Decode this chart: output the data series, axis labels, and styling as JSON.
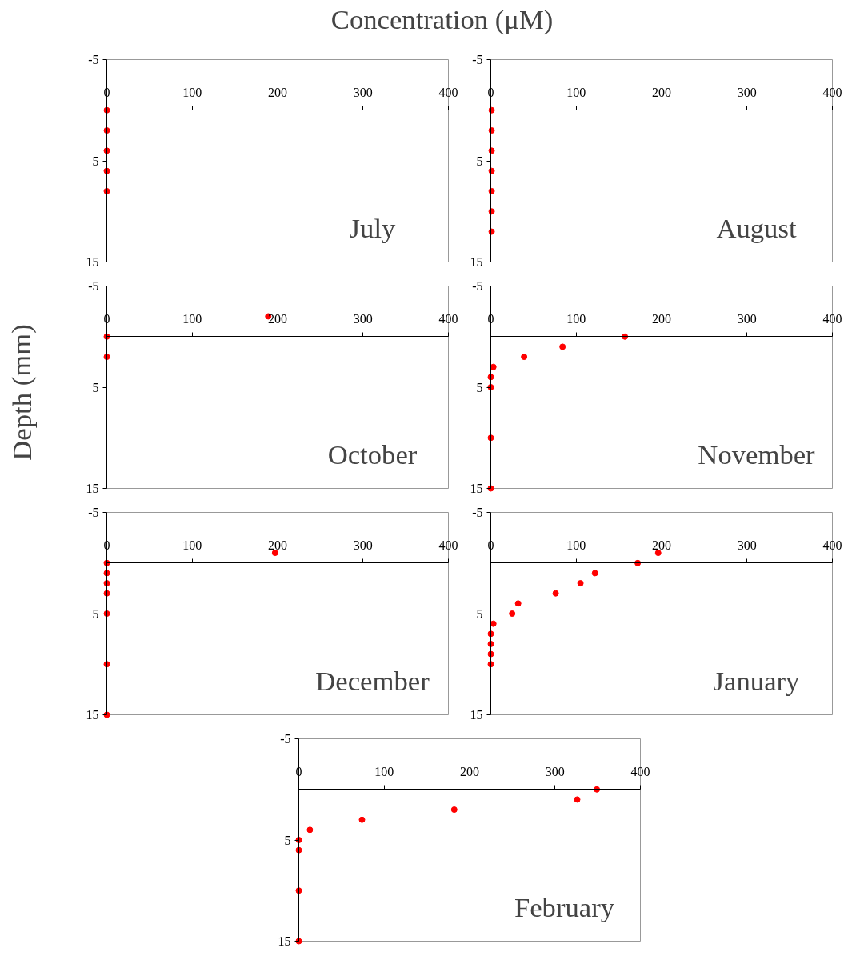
{
  "chart_data": [
    {
      "type": "scatter",
      "xlabel": "Concentration (μM)",
      "ylabel": "Depth (mm)",
      "annotations": [
        "July"
      ],
      "x": [
        0,
        0,
        0,
        0,
        0
      ],
      "values": [
        0,
        2,
        4,
        6,
        8
      ],
      "color": "#ff0000",
      "marker": "circle",
      "xlim": [
        0,
        400
      ],
      "ylim": [
        15,
        -5
      ],
      "xticks": [
        0,
        100,
        200,
        300,
        400
      ],
      "yticks": [
        -5,
        5,
        15
      ],
      "grid": false,
      "legend": false
    },
    {
      "type": "scatter",
      "annotations": [
        "August"
      ],
      "x": [
        1,
        1,
        1,
        1,
        1,
        1,
        1
      ],
      "values": [
        0,
        2,
        4,
        6,
        8,
        10,
        12
      ],
      "color": "#ff0000",
      "marker": "circle",
      "xlim": [
        0,
        400
      ],
      "ylim": [
        15,
        -5
      ],
      "xticks": [
        0,
        100,
        200,
        300,
        400
      ],
      "yticks": [
        -5,
        5,
        15
      ],
      "grid": false,
      "legend": false
    },
    {
      "type": "scatter",
      "annotations": [
        "October"
      ],
      "x": [
        189,
        0,
        0
      ],
      "values": [
        -2,
        0,
        2
      ],
      "color": "#ff0000",
      "marker": "circle",
      "xlim": [
        0,
        400
      ],
      "ylim": [
        15,
        -5
      ],
      "xticks": [
        0,
        100,
        200,
        300,
        400
      ],
      "yticks": [
        -5,
        5,
        15
      ],
      "grid": false,
      "legend": false
    },
    {
      "type": "scatter",
      "annotations": [
        "November"
      ],
      "x": [
        157,
        84,
        39,
        3,
        0,
        0,
        0,
        0
      ],
      "values": [
        0,
        1,
        2,
        3,
        4,
        5,
        10,
        15
      ],
      "color": "#ff0000",
      "marker": "circle",
      "xlim": [
        0,
        400
      ],
      "ylim": [
        15,
        -5
      ],
      "xticks": [
        0,
        100,
        200,
        300,
        400
      ],
      "yticks": [
        -5,
        5,
        15
      ],
      "grid": false,
      "legend": false
    },
    {
      "type": "scatter",
      "annotations": [
        "December"
      ],
      "x": [
        197,
        0,
        0,
        0,
        0,
        0,
        0,
        0
      ],
      "values": [
        -1,
        0,
        1,
        2,
        3,
        5,
        10,
        15
      ],
      "color": "#ff0000",
      "marker": "circle",
      "xlim": [
        0,
        400
      ],
      "ylim": [
        15,
        -5
      ],
      "xticks": [
        0,
        100,
        200,
        300,
        400
      ],
      "yticks": [
        -5,
        5,
        15
      ],
      "grid": false,
      "legend": false
    },
    {
      "type": "scatter",
      "annotations": [
        "January"
      ],
      "x": [
        196,
        172,
        122,
        105,
        76,
        32,
        25,
        3,
        0,
        0,
        0,
        0
      ],
      "values": [
        -1,
        0,
        1,
        2,
        3,
        4,
        5,
        6,
        7,
        8,
        9,
        10
      ],
      "color": "#ff0000",
      "marker": "circle",
      "xlim": [
        0,
        400
      ],
      "ylim": [
        15,
        -5
      ],
      "xticks": [
        0,
        100,
        200,
        300,
        400
      ],
      "yticks": [
        -5,
        5,
        15
      ],
      "grid": false,
      "legend": false
    },
    {
      "type": "scatter",
      "annotations": [
        "February"
      ],
      "x": [
        349,
        326,
        182,
        74,
        13,
        0,
        0,
        0,
        0
      ],
      "values": [
        0,
        1,
        2,
        3,
        4,
        5,
        6,
        10,
        15
      ],
      "color": "#ff0000",
      "marker": "circle",
      "xlim": [
        0,
        400
      ],
      "ylim": [
        15,
        -5
      ],
      "xticks": [
        0,
        100,
        200,
        300,
        400
      ],
      "yticks": [
        -5,
        5,
        15
      ],
      "grid": false,
      "legend": false
    }
  ]
}
